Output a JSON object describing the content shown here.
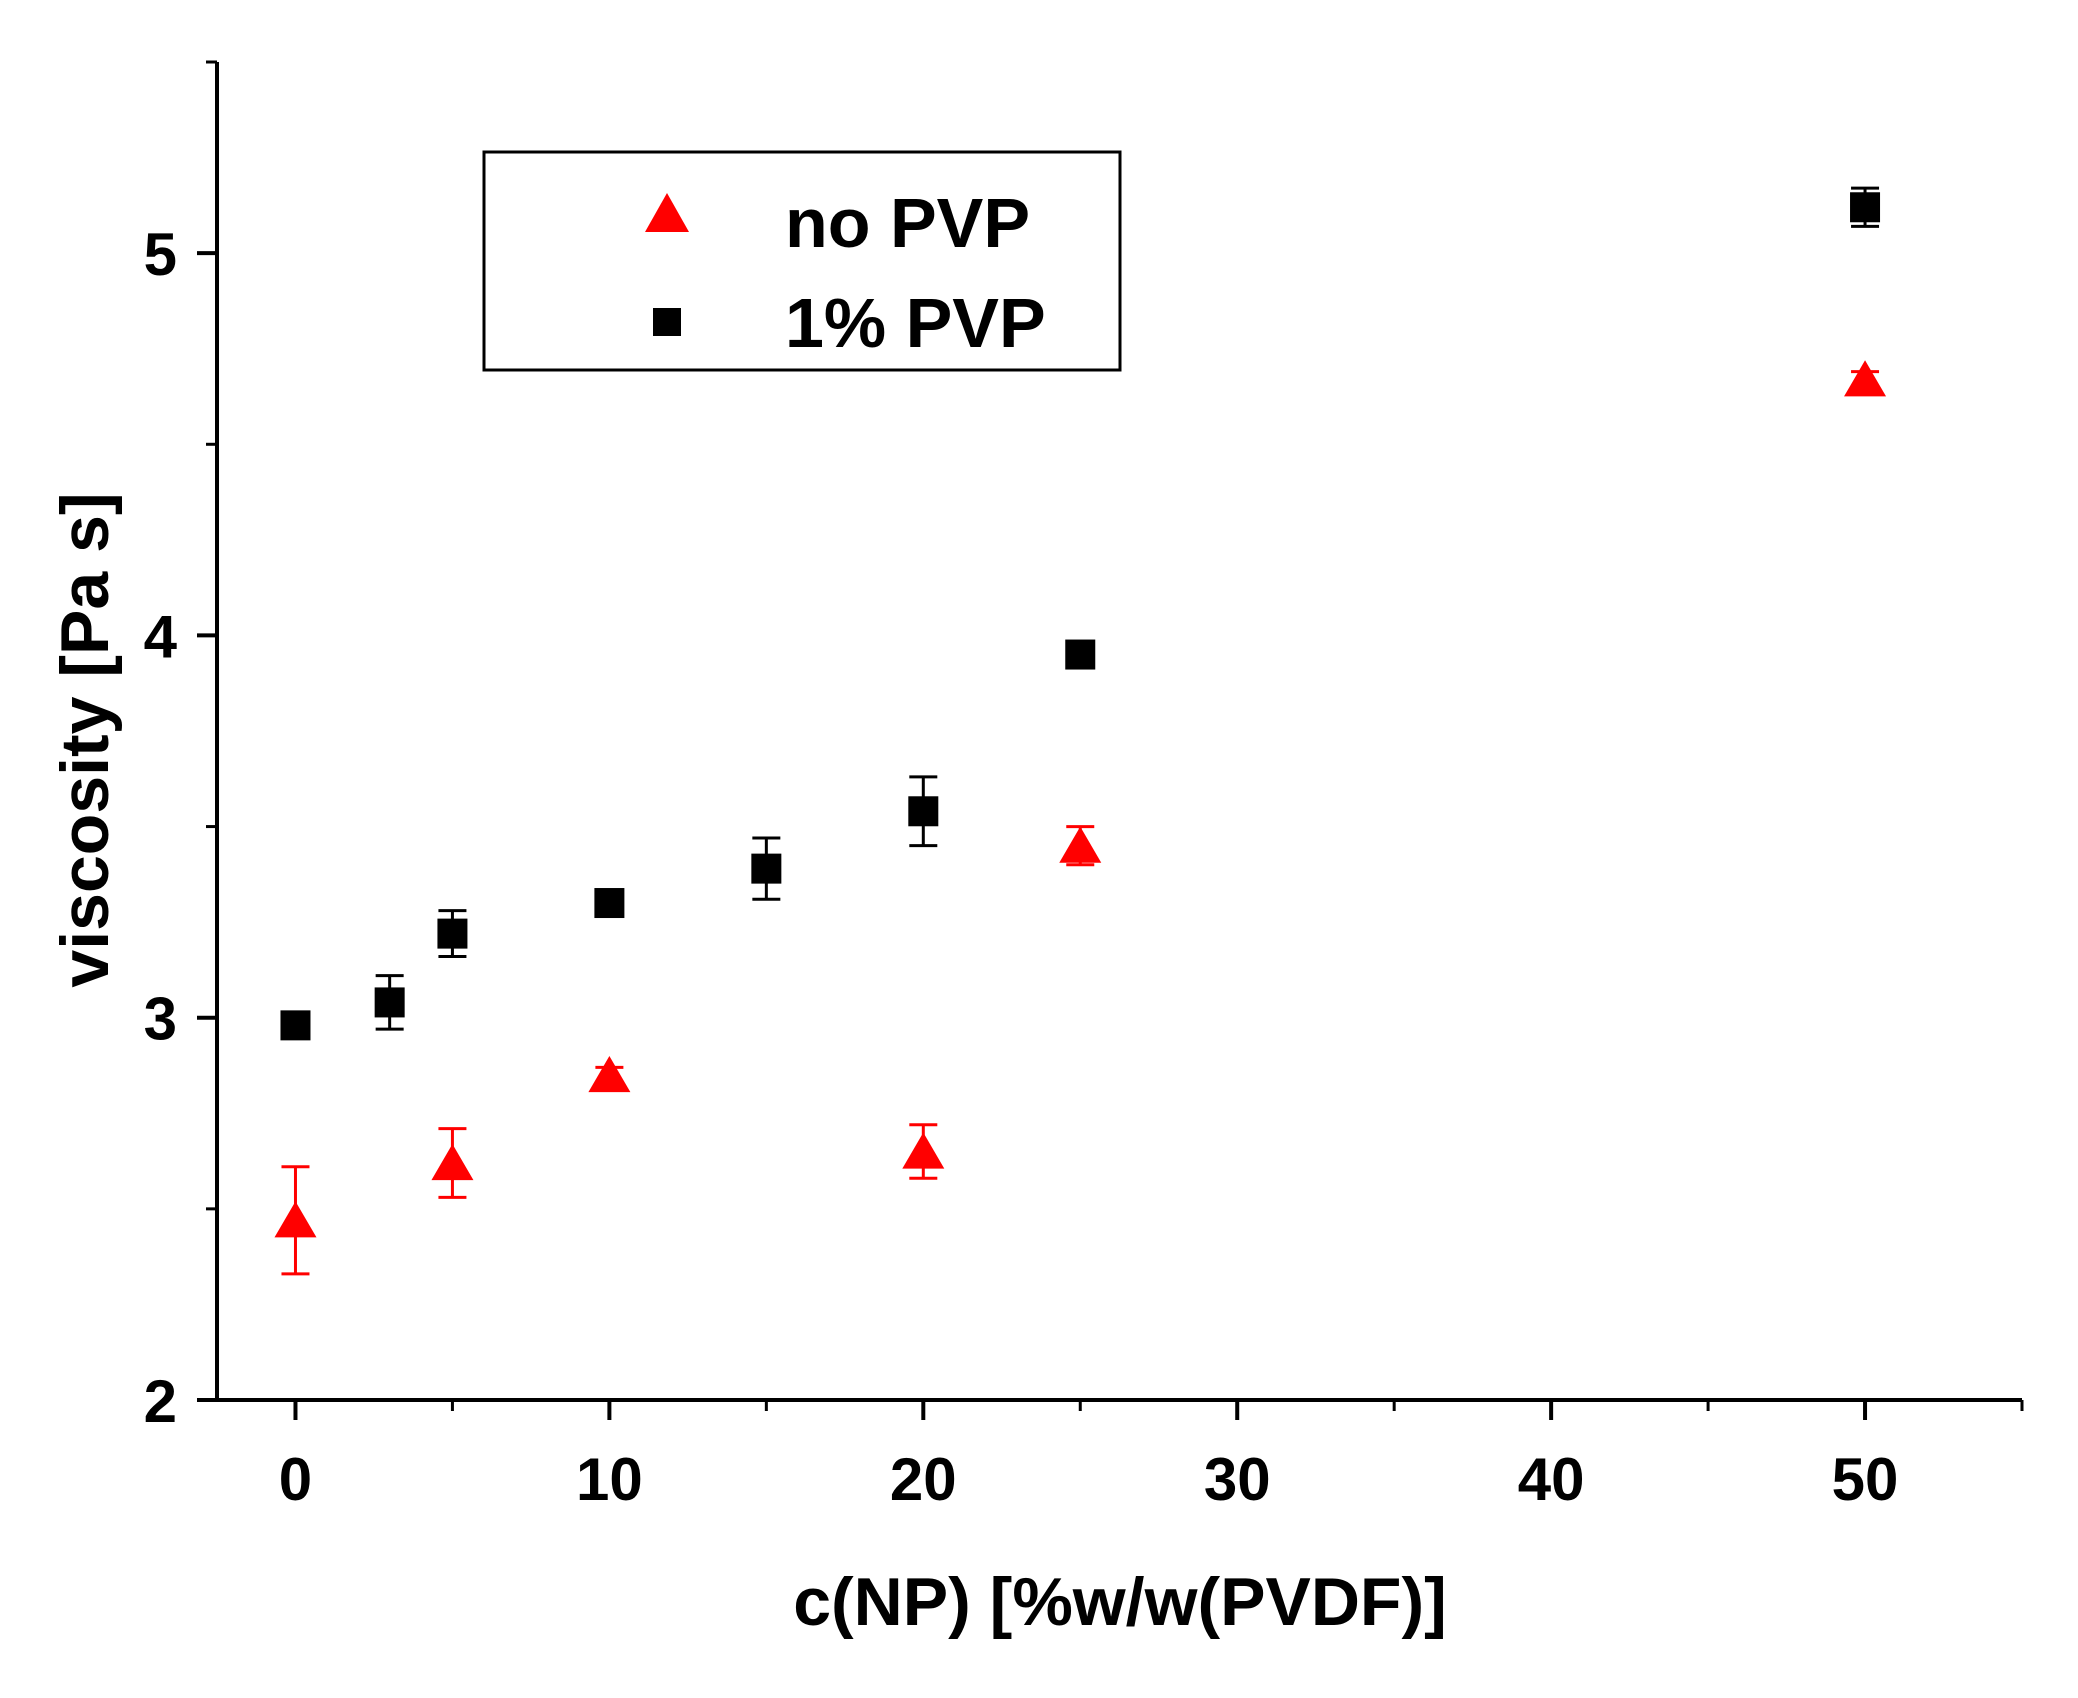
{
  "chart_data": {
    "type": "scatter",
    "title": "",
    "xlabel": "c(NP) [%w/w(PVDF)]",
    "ylabel": "viscosity [Pa s]",
    "xlim": [
      -2.5,
      55
    ],
    "ylim": [
      2,
      5.5
    ],
    "xticks": [
      0,
      10,
      20,
      30,
      40,
      50
    ],
    "yticks": [
      2,
      3,
      4,
      5
    ],
    "x_tick_labels": [
      "0",
      "10",
      "20",
      "30",
      "40",
      "50"
    ],
    "y_tick_labels": [
      "2",
      "3",
      "4",
      "5"
    ],
    "grid": false,
    "legend_position": "top-left",
    "series": [
      {
        "name": "no PVP",
        "marker": "triangle",
        "color": "#ff0000",
        "x": [
          0,
          5,
          10,
          20,
          25,
          50
        ],
        "y": [
          2.47,
          2.62,
          2.85,
          2.65,
          3.45,
          4.67
        ],
        "err": [
          0.14,
          0.09,
          0.02,
          0.07,
          0.05,
          0.02
        ]
      },
      {
        "name": "1% PVP",
        "marker": "square",
        "color": "#000000",
        "x": [
          0,
          3,
          5,
          10,
          15,
          20,
          25,
          50
        ],
        "y": [
          2.98,
          3.04,
          3.22,
          3.3,
          3.39,
          3.54,
          3.95,
          5.12
        ],
        "err": [
          0.02,
          0.07,
          0.06,
          0.02,
          0.08,
          0.09,
          0.02,
          0.05
        ]
      }
    ]
  }
}
